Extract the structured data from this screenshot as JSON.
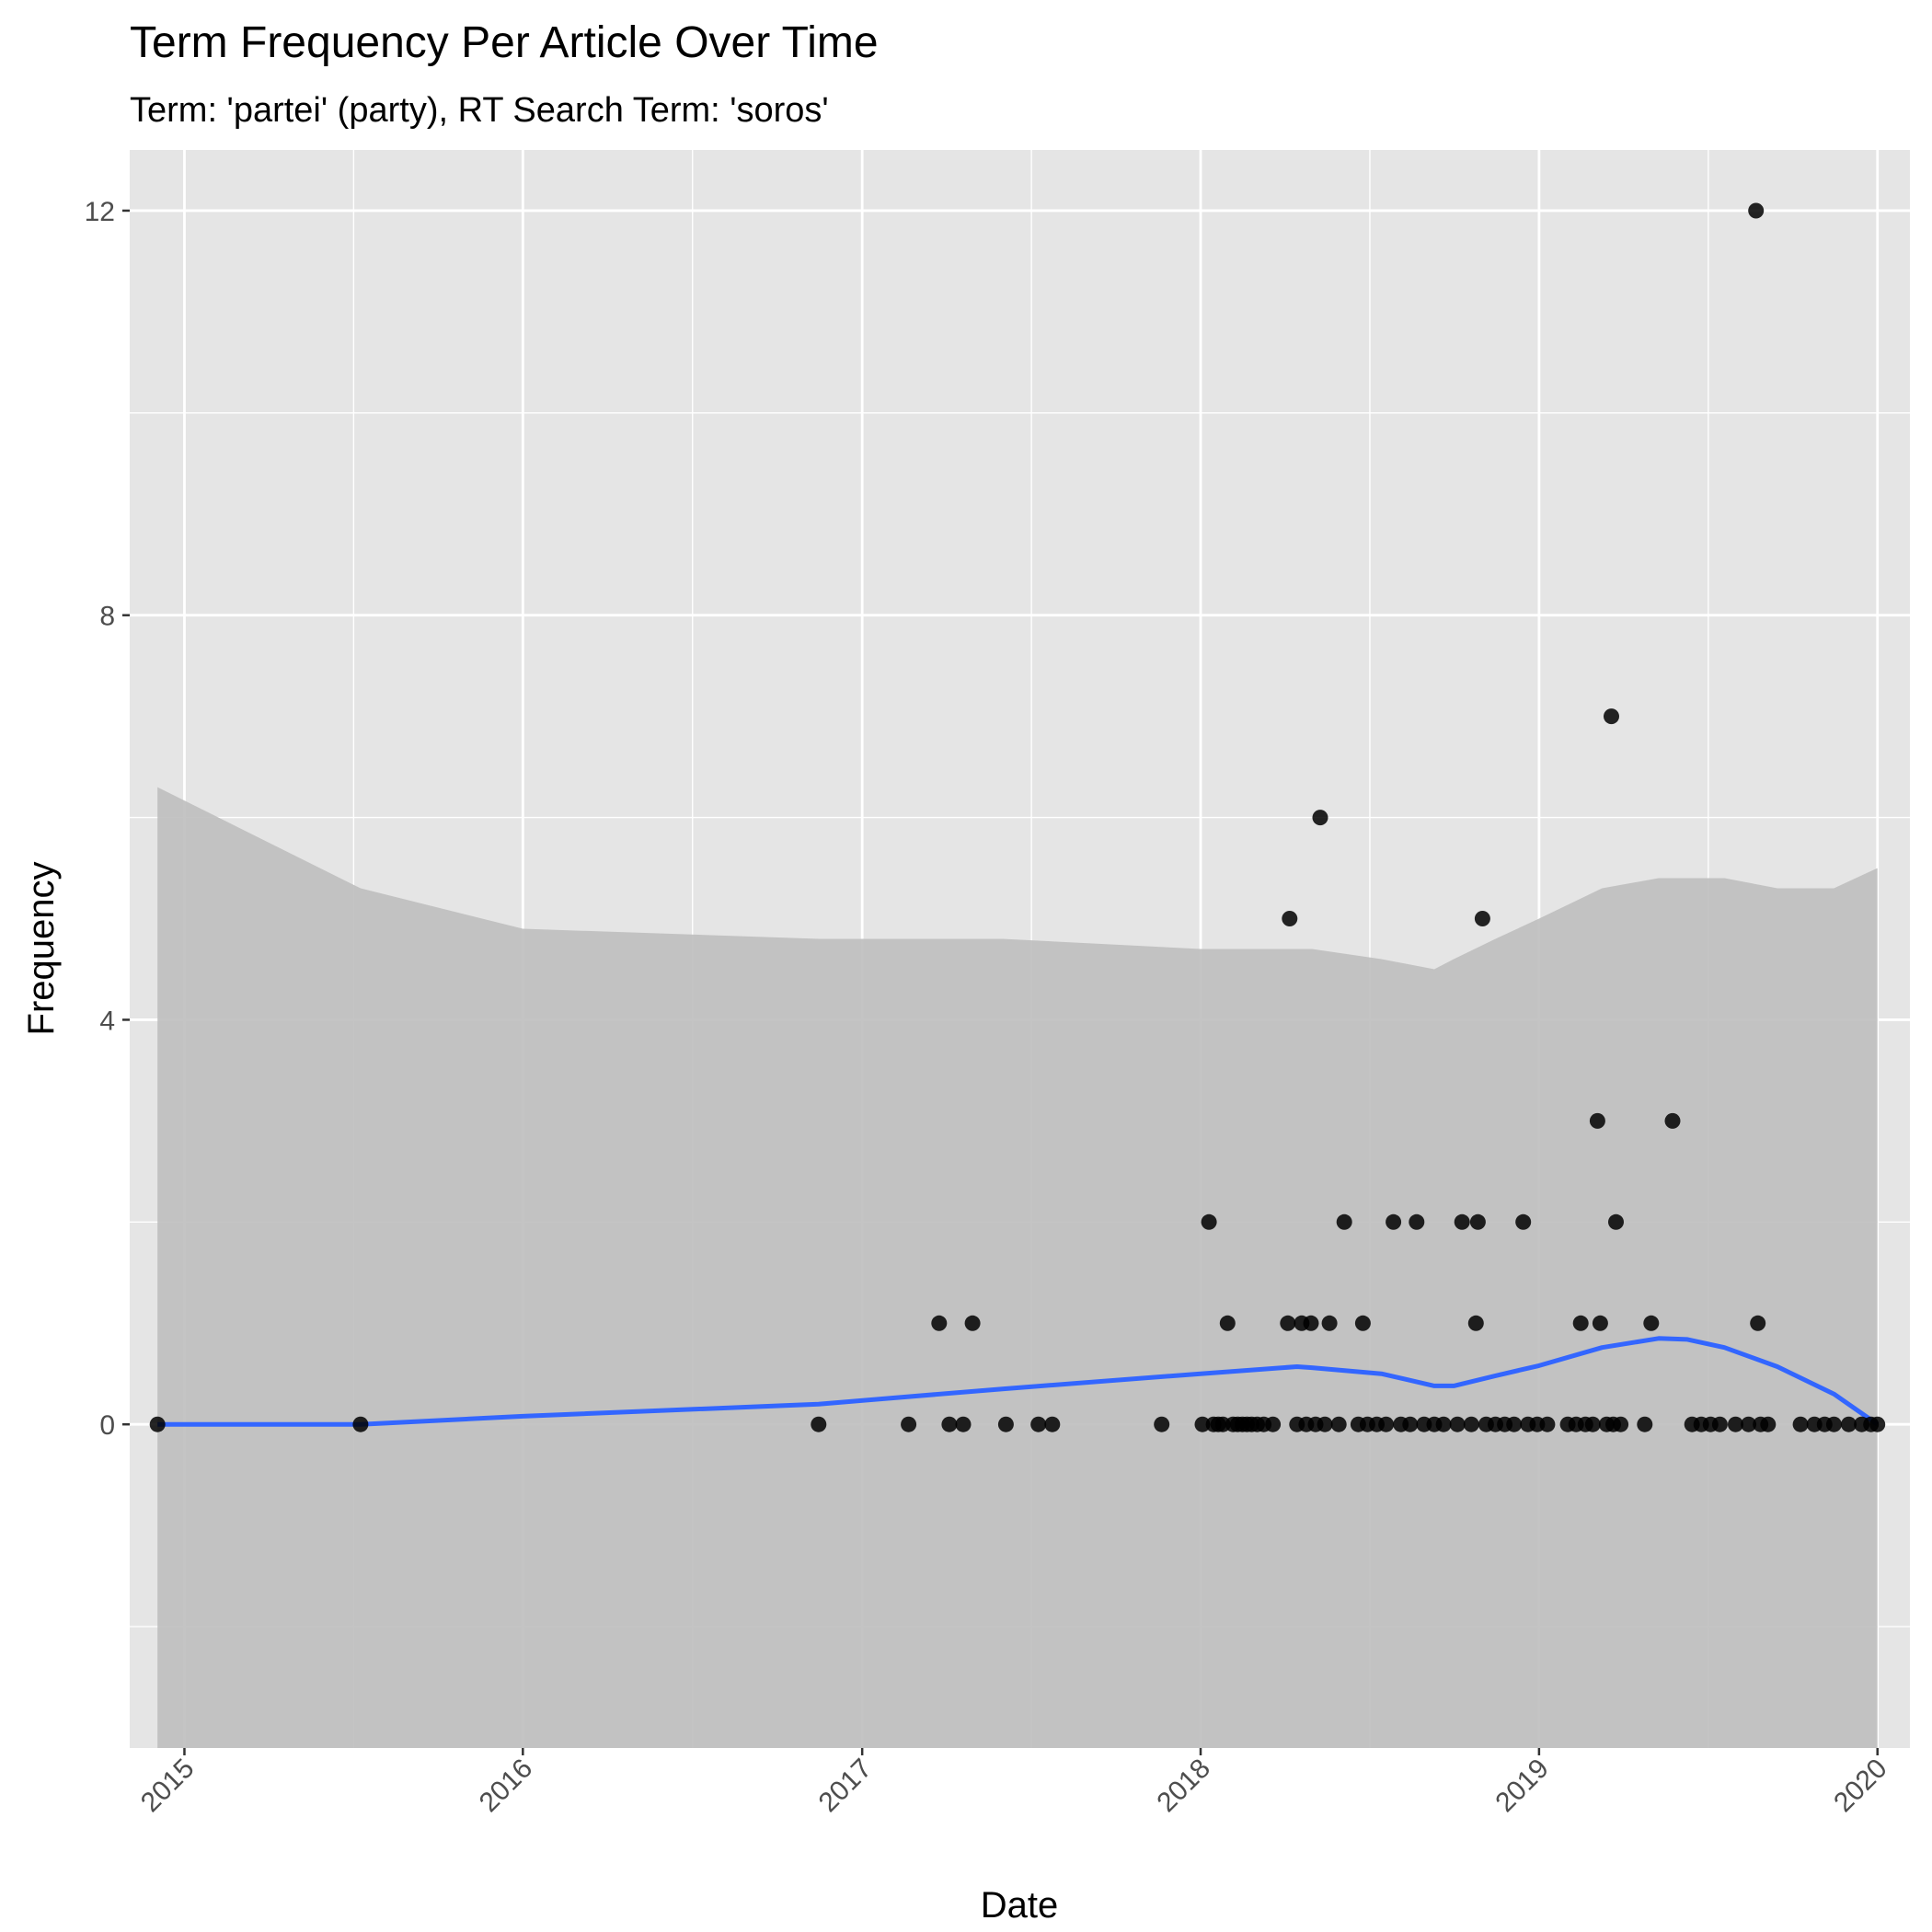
{
  "chart_data": {
    "type": "scatter",
    "title": "Term Frequency Per Article Over Time",
    "subtitle": "Term: 'partei' (party), RT Search Term: 'soros'",
    "xlabel": "Date",
    "ylabel": "Frequency",
    "x_ticks": [
      "2015",
      "2016",
      "2017",
      "2018",
      "2019",
      "2020"
    ],
    "y_ticks": [
      0,
      4,
      8,
      12
    ],
    "xlim": [
      "2014-11-03",
      "2020-02-05"
    ],
    "ylim": [
      -3.2,
      12.6
    ],
    "grid": true,
    "colors": {
      "panel": "#e5e5e5",
      "grid": "#ffffff",
      "point": "#000000",
      "smooth_line": "#3366ff",
      "ribbon": "#bebebe"
    },
    "series": [
      {
        "points": [
          [
            "2014-12-03",
            0
          ],
          [
            "2015-07-10",
            0
          ],
          [
            "2016-11-15",
            0
          ],
          [
            "2017-02-20",
            0
          ],
          [
            "2017-03-25",
            1
          ],
          [
            "2017-04-05",
            0
          ],
          [
            "2017-04-20",
            0
          ],
          [
            "2017-04-30",
            1
          ],
          [
            "2017-06-05",
            0
          ],
          [
            "2017-07-10",
            0
          ],
          [
            "2017-07-25",
            0
          ],
          [
            "2017-11-20",
            0
          ],
          [
            "2018-01-03",
            0
          ],
          [
            "2018-01-10",
            2
          ],
          [
            "2018-01-15",
            0
          ],
          [
            "2018-01-20",
            0
          ],
          [
            "2018-01-25",
            0
          ],
          [
            "2018-01-30",
            1
          ],
          [
            "2018-02-05",
            0
          ],
          [
            "2018-02-10",
            0
          ],
          [
            "2018-02-15",
            0
          ],
          [
            "2018-02-20",
            0
          ],
          [
            "2018-02-25",
            0
          ],
          [
            "2018-03-03",
            0
          ],
          [
            "2018-03-10",
            0
          ],
          [
            "2018-03-20",
            0
          ],
          [
            "2018-04-05",
            1
          ],
          [
            "2018-04-07",
            5
          ],
          [
            "2018-04-15",
            0
          ],
          [
            "2018-04-20",
            1
          ],
          [
            "2018-04-25",
            0
          ],
          [
            "2018-04-30",
            1
          ],
          [
            "2018-05-05",
            0
          ],
          [
            "2018-05-10",
            6
          ],
          [
            "2018-05-15",
            0
          ],
          [
            "2018-05-20",
            1
          ],
          [
            "2018-05-30",
            0
          ],
          [
            "2018-06-05",
            2
          ],
          [
            "2018-06-20",
            0
          ],
          [
            "2018-06-25",
            1
          ],
          [
            "2018-06-30",
            0
          ],
          [
            "2018-07-10",
            0
          ],
          [
            "2018-07-20",
            0
          ],
          [
            "2018-07-28",
            2
          ],
          [
            "2018-08-05",
            0
          ],
          [
            "2018-08-15",
            0
          ],
          [
            "2018-08-22",
            2
          ],
          [
            "2018-08-30",
            0
          ],
          [
            "2018-09-10",
            0
          ],
          [
            "2018-09-20",
            0
          ],
          [
            "2018-10-05",
            0
          ],
          [
            "2018-10-10",
            2
          ],
          [
            "2018-10-20",
            0
          ],
          [
            "2018-10-25",
            1
          ],
          [
            "2018-10-27",
            2
          ],
          [
            "2018-11-01",
            5
          ],
          [
            "2018-11-05",
            0
          ],
          [
            "2018-11-15",
            0
          ],
          [
            "2018-11-25",
            0
          ],
          [
            "2018-12-05",
            0
          ],
          [
            "2018-12-15",
            2
          ],
          [
            "2018-12-20",
            0
          ],
          [
            "2018-12-30",
            0
          ],
          [
            "2019-01-10",
            0
          ],
          [
            "2019-02-01",
            0
          ],
          [
            "2019-02-10",
            0
          ],
          [
            "2019-02-15",
            1
          ],
          [
            "2019-02-20",
            0
          ],
          [
            "2019-02-28",
            0
          ],
          [
            "2019-03-05",
            3
          ],
          [
            "2019-03-08",
            1
          ],
          [
            "2019-03-15",
            0
          ],
          [
            "2019-03-20",
            7
          ],
          [
            "2019-03-22",
            0
          ],
          [
            "2019-03-25",
            2
          ],
          [
            "2019-03-30",
            0
          ],
          [
            "2019-04-25",
            0
          ],
          [
            "2019-05-02",
            1
          ],
          [
            "2019-05-25",
            3
          ],
          [
            "2019-06-15",
            0
          ],
          [
            "2019-06-25",
            0
          ],
          [
            "2019-07-05",
            0
          ],
          [
            "2019-07-15",
            0
          ],
          [
            "2019-08-01",
            0
          ],
          [
            "2019-08-15",
            0
          ],
          [
            "2019-08-23",
            12
          ],
          [
            "2019-08-25",
            1
          ],
          [
            "2019-08-28",
            0
          ],
          [
            "2019-09-05",
            0
          ],
          [
            "2019-10-10",
            0
          ],
          [
            "2019-10-25",
            0
          ],
          [
            "2019-11-05",
            0
          ],
          [
            "2019-11-15",
            0
          ],
          [
            "2019-12-01",
            0
          ],
          [
            "2019-12-15",
            0
          ],
          [
            "2019-12-25",
            0
          ],
          [
            "2020-01-01",
            0
          ]
        ]
      }
    ],
    "smooth": {
      "x": [
        "2014-12-03",
        "2015-07-10",
        "2016-01-01",
        "2016-11-15",
        "2017-06-01",
        "2018-01-01",
        "2018-04-15",
        "2018-05-01",
        "2018-07-15",
        "2018-09-10",
        "2018-10-01",
        "2018-11-15",
        "2019-01-01",
        "2019-03-10",
        "2019-05-10",
        "2019-06-10",
        "2019-07-20",
        "2019-09-15",
        "2019-11-15",
        "2020-01-01"
      ],
      "y": [
        0,
        0,
        0.08,
        0.2,
        0.35,
        0.5,
        0.57,
        0.56,
        0.5,
        0.38,
        0.38,
        0.48,
        0.58,
        0.76,
        0.85,
        0.84,
        0.76,
        0.57,
        0.3,
        0.0
      ],
      "lower": [
        -6.3,
        -5.3,
        -4.8,
        -4.4,
        -4.1,
        -3.7,
        -3.55,
        -3.6,
        -3.9,
        -4.4,
        -4.5,
        -4.2,
        -3.9,
        -3.6,
        -3.5,
        -3.5,
        -3.6,
        -4.0,
        -4.6,
        -5.5
      ],
      "upper": [
        6.3,
        5.3,
        4.9,
        4.8,
        4.8,
        4.7,
        4.7,
        4.7,
        4.6,
        4.5,
        4.6,
        4.8,
        5.0,
        5.3,
        5.4,
        5.4,
        5.4,
        5.3,
        5.3,
        5.5
      ]
    }
  }
}
